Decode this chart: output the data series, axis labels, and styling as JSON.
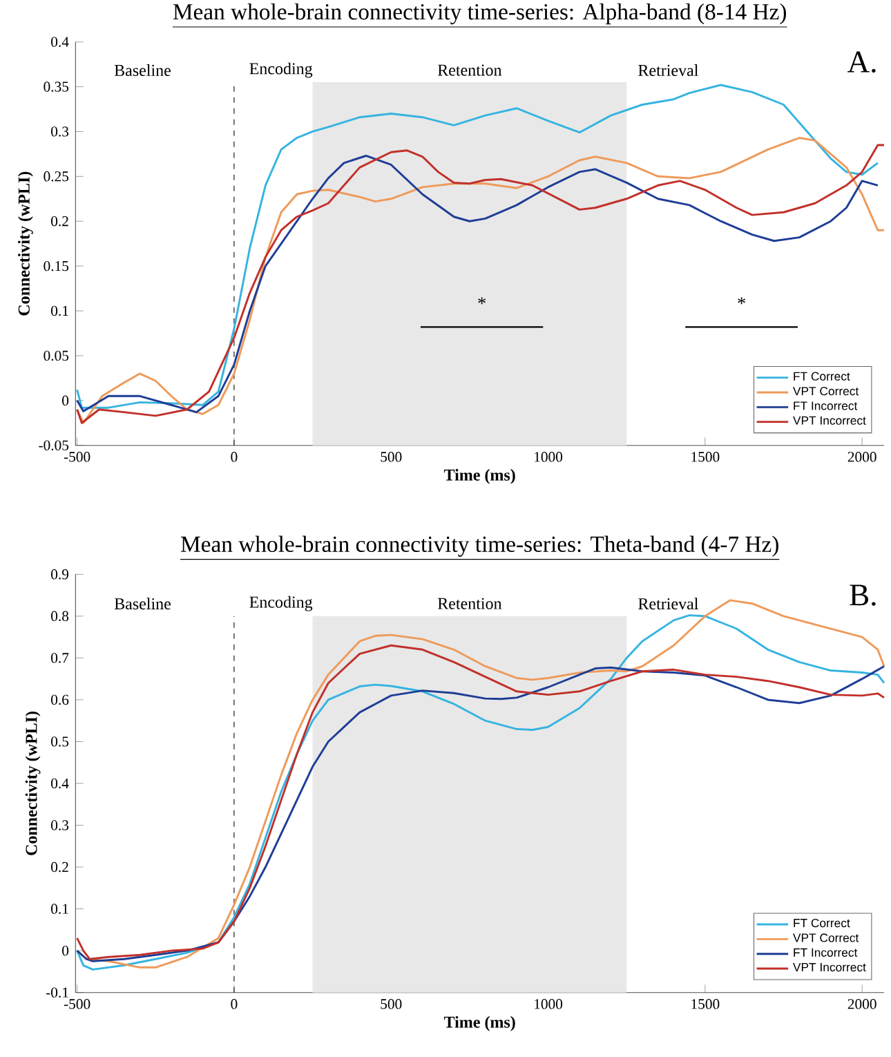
{
  "chart_data": [
    {
      "type": "line",
      "title": "Mean whole-brain connectivity time-series: Alpha-band (8-14 Hz)",
      "xlabel": "Time (ms)",
      "ylabel": "Connectivity (wPLI)",
      "xlim": [
        -505,
        2070
      ],
      "ylim": [
        -0.05,
        0.4
      ],
      "xticks": [
        -500,
        0,
        500,
        1000,
        1500,
        2000
      ],
      "yticks": [
        -0.05,
        0,
        0.05,
        0.1,
        0.15,
        0.2,
        0.25,
        0.3,
        0.35,
        0.4
      ],
      "legend": "bottom right",
      "bands": [
        {
          "axis": "x",
          "from": 250,
          "to": 1250,
          "label": "Retention",
          "color": "#e8e8e8"
        }
      ],
      "ref_lines": [
        {
          "axis": "x",
          "value": 0,
          "color": "#000000",
          "line_style": "dashed"
        }
      ],
      "annotations": [
        "A.",
        "Baseline",
        "Encoding",
        "Retrieval",
        {
          "text": "*",
          "x": 789,
          "y": 0.082
        },
        {
          "text": "*",
          "x": 1616,
          "y": 0.082
        }
      ],
      "series": [
        {
          "name": "FT Correct",
          "color": "#35b4e0",
          "x": [
            -500,
            -485,
            -400,
            -300,
            -200,
            -100,
            -50,
            0,
            50,
            100,
            150,
            200,
            250,
            300,
            400,
            500,
            600,
            700,
            800,
            900,
            1000,
            1100,
            1200,
            1300,
            1400,
            1450,
            1550,
            1650,
            1750,
            1850,
            1900,
            1950,
            2000,
            2050
          ],
          "values": [
            0.012,
            -0.008,
            -0.008,
            -0.002,
            -0.003,
            -0.005,
            0.01,
            0.08,
            0.17,
            0.24,
            0.28,
            0.293,
            0.3,
            0.305,
            0.316,
            0.32,
            0.316,
            0.307,
            0.318,
            0.326,
            0.312,
            0.299,
            0.318,
            0.33,
            0.336,
            0.343,
            0.352,
            0.344,
            0.33,
            0.29,
            0.27,
            0.255,
            0.252,
            0.265
          ]
        },
        {
          "name": "VPT Correct",
          "color": "#ee9a5a",
          "x": [
            -500,
            -480,
            -420,
            -350,
            -300,
            -250,
            -200,
            -150,
            -100,
            -50,
            0,
            50,
            100,
            150,
            200,
            250,
            300,
            400,
            450,
            500,
            600,
            700,
            800,
            900,
            1000,
            1100,
            1150,
            1250,
            1350,
            1450,
            1550,
            1700,
            1800,
            1850,
            1950,
            2000,
            2050,
            2070
          ],
          "values": [
            -0.01,
            -0.025,
            0.005,
            0.02,
            0.03,
            0.022,
            0.005,
            -0.01,
            -0.015,
            -0.005,
            0.03,
            0.09,
            0.16,
            0.21,
            0.23,
            0.234,
            0.235,
            0.227,
            0.222,
            0.225,
            0.238,
            0.242,
            0.242,
            0.237,
            0.25,
            0.268,
            0.272,
            0.265,
            0.25,
            0.248,
            0.255,
            0.28,
            0.293,
            0.29,
            0.26,
            0.23,
            0.19,
            0.19
          ]
        },
        {
          "name": "FT Incorrect",
          "color": "#1e3d96",
          "x": [
            -500,
            -480,
            -400,
            -300,
            -200,
            -120,
            -50,
            0,
            50,
            100,
            200,
            250,
            300,
            350,
            420,
            500,
            600,
            700,
            750,
            800,
            900,
            1000,
            1100,
            1150,
            1250,
            1350,
            1450,
            1550,
            1650,
            1720,
            1800,
            1900,
            1950,
            2000,
            2050
          ],
          "values": [
            0.0,
            -0.012,
            0.005,
            0.005,
            -0.005,
            -0.013,
            0.005,
            0.04,
            0.1,
            0.15,
            0.2,
            0.225,
            0.248,
            0.265,
            0.273,
            0.263,
            0.23,
            0.205,
            0.2,
            0.203,
            0.218,
            0.238,
            0.255,
            0.258,
            0.243,
            0.225,
            0.218,
            0.2,
            0.185,
            0.178,
            0.182,
            0.2,
            0.215,
            0.245,
            0.24
          ]
        },
        {
          "name": "VPT Incorrect",
          "color": "#c2302a",
          "x": [
            -500,
            -485,
            -430,
            -350,
            -250,
            -150,
            -80,
            0,
            50,
            100,
            150,
            200,
            250,
            300,
            350,
            400,
            500,
            550,
            600,
            650,
            700,
            750,
            800,
            850,
            950,
            1050,
            1100,
            1150,
            1250,
            1350,
            1420,
            1500,
            1600,
            1650,
            1750,
            1850,
            1950,
            2000,
            2050,
            2070
          ],
          "values": [
            -0.01,
            -0.025,
            -0.01,
            -0.013,
            -0.017,
            -0.01,
            0.01,
            0.07,
            0.12,
            0.16,
            0.19,
            0.205,
            0.212,
            0.22,
            0.24,
            0.26,
            0.277,
            0.279,
            0.272,
            0.255,
            0.243,
            0.242,
            0.246,
            0.247,
            0.24,
            0.222,
            0.213,
            0.215,
            0.225,
            0.24,
            0.245,
            0.235,
            0.215,
            0.207,
            0.21,
            0.22,
            0.24,
            0.255,
            0.285,
            0.285
          ]
        },
        {
          "type": "line",
          "color": "#000000",
          "x": [
            594,
            984
          ],
          "values": [
            0.082,
            0.082
          ]
        },
        {
          "type": "line",
          "color": "#000000",
          "x": [
            1437,
            1795
          ],
          "values": [
            0.082,
            0.082
          ]
        }
      ]
    },
    {
      "type": "line",
      "title": "Mean whole-brain connectivity time-series: Theta-band (4-7 Hz)",
      "xlabel": "Time (ms)",
      "ylabel": "Connectivity (wPLI)",
      "xlim": [
        -505,
        2070
      ],
      "ylim": [
        -0.1,
        0.9
      ],
      "xticks": [
        -500,
        0,
        500,
        1000,
        1500,
        2000
      ],
      "yticks": [
        -0.1,
        0,
        0.1,
        0.2,
        0.3,
        0.4,
        0.5,
        0.6,
        0.7,
        0.8,
        0.9
      ],
      "legend": "bottom right",
      "bands": [
        {
          "axis": "x",
          "from": 250,
          "to": 1250,
          "label": "Retention",
          "color": "#e8e8e8"
        }
      ],
      "ref_lines": [
        {
          "axis": "x",
          "value": 0,
          "color": "#000000",
          "line_style": "dashed"
        }
      ],
      "annotations": [
        "B.",
        "Baseline",
        "Encoding",
        "Retrieval"
      ],
      "series": [
        {
          "name": "FT Correct",
          "color": "#35b4e0",
          "x": [
            -500,
            -480,
            -450,
            -350,
            -250,
            -150,
            -50,
            0,
            50,
            100,
            150,
            200,
            250,
            300,
            400,
            450,
            500,
            600,
            700,
            800,
            900,
            950,
            1000,
            1100,
            1200,
            1250,
            1300,
            1400,
            1450,
            1500,
            1600,
            1700,
            1800,
            1900,
            2000,
            2050,
            2070
          ],
          "values": [
            0.0,
            -0.035,
            -0.045,
            -0.035,
            -0.02,
            -0.005,
            0.02,
            0.08,
            0.16,
            0.27,
            0.38,
            0.47,
            0.55,
            0.6,
            0.632,
            0.636,
            0.633,
            0.62,
            0.59,
            0.55,
            0.53,
            0.528,
            0.535,
            0.58,
            0.65,
            0.7,
            0.74,
            0.79,
            0.802,
            0.8,
            0.77,
            0.72,
            0.69,
            0.67,
            0.665,
            0.66,
            0.64
          ]
        },
        {
          "name": "VPT Correct",
          "color": "#ee9a5a",
          "x": [
            -500,
            -470,
            -400,
            -300,
            -250,
            -150,
            -50,
            0,
            50,
            100,
            150,
            200,
            250,
            300,
            400,
            450,
            500,
            600,
            700,
            800,
            900,
            950,
            1000,
            1100,
            1200,
            1250,
            1300,
            1400,
            1500,
            1580,
            1650,
            1750,
            1850,
            1950,
            2000,
            2050,
            2070
          ],
          "values": [
            0.0,
            -0.02,
            -0.025,
            -0.04,
            -0.04,
            -0.015,
            0.03,
            0.11,
            0.2,
            0.31,
            0.42,
            0.52,
            0.6,
            0.66,
            0.74,
            0.753,
            0.755,
            0.745,
            0.72,
            0.68,
            0.652,
            0.648,
            0.652,
            0.665,
            0.67,
            0.668,
            0.68,
            0.73,
            0.8,
            0.838,
            0.83,
            0.8,
            0.78,
            0.76,
            0.75,
            0.72,
            0.68
          ]
        },
        {
          "name": "FT Incorrect",
          "color": "#1e3d96",
          "x": [
            -500,
            -470,
            -450,
            -350,
            -250,
            -150,
            -50,
            0,
            50,
            100,
            150,
            200,
            250,
            300,
            400,
            500,
            600,
            700,
            800,
            850,
            900,
            1000,
            1100,
            1150,
            1200,
            1300,
            1400,
            1500,
            1600,
            1700,
            1800,
            1900,
            2000,
            2070
          ],
          "values": [
            0.0,
            -0.02,
            -0.025,
            -0.02,
            -0.01,
            0.0,
            0.02,
            0.07,
            0.13,
            0.2,
            0.28,
            0.36,
            0.44,
            0.5,
            0.57,
            0.61,
            0.622,
            0.616,
            0.603,
            0.602,
            0.605,
            0.63,
            0.66,
            0.675,
            0.677,
            0.668,
            0.665,
            0.658,
            0.63,
            0.6,
            0.592,
            0.61,
            0.65,
            0.68
          ]
        },
        {
          "name": "VPT Incorrect",
          "color": "#c2302a",
          "x": [
            -500,
            -480,
            -460,
            -400,
            -300,
            -200,
            -100,
            -50,
            0,
            50,
            100,
            150,
            200,
            250,
            300,
            400,
            500,
            600,
            700,
            800,
            900,
            1000,
            1100,
            1200,
            1300,
            1400,
            1500,
            1600,
            1700,
            1800,
            1900,
            2000,
            2050,
            2070
          ],
          "values": [
            0.03,
            0.0,
            -0.02,
            -0.015,
            -0.01,
            0.0,
            0.005,
            0.02,
            0.07,
            0.15,
            0.25,
            0.36,
            0.47,
            0.57,
            0.64,
            0.71,
            0.73,
            0.72,
            0.69,
            0.655,
            0.62,
            0.612,
            0.62,
            0.645,
            0.668,
            0.672,
            0.66,
            0.655,
            0.645,
            0.63,
            0.612,
            0.61,
            0.615,
            0.605
          ]
        }
      ]
    }
  ]
}
